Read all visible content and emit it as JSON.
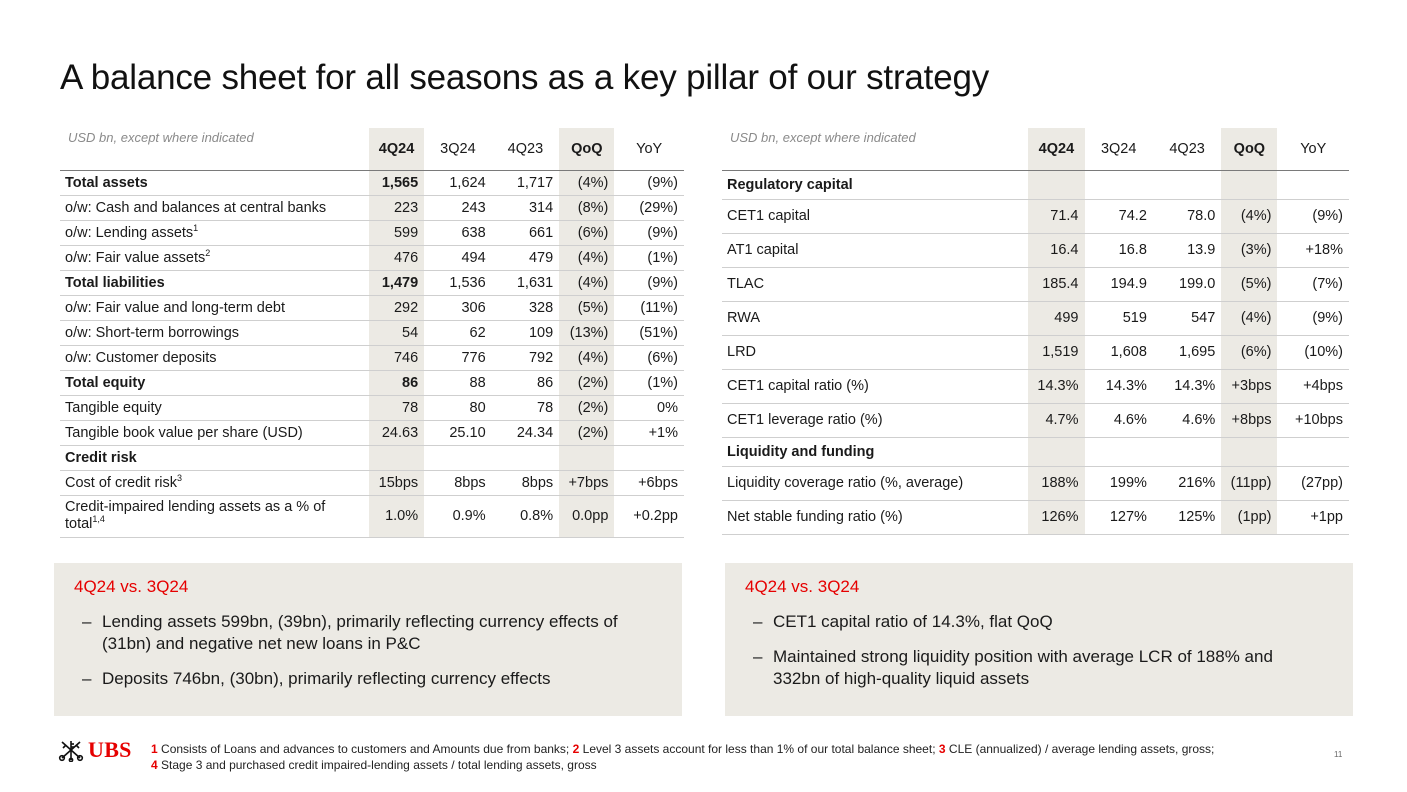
{
  "title": "A balance sheet for all seasons as a key pillar of our strategy",
  "left_table": {
    "unit": "USD bn, except where indicated",
    "columns": [
      "4Q24",
      "3Q24",
      "4Q23",
      "QoQ",
      "YoY"
    ],
    "rows": [
      {
        "label": "Total assets",
        "values": [
          "1,565",
          "1,624",
          "1,717",
          "(4%)",
          "(9%)"
        ]
      },
      {
        "label": "o/w: Cash and balances at central banks",
        "values": [
          "223",
          "243",
          "314",
          "(8%)",
          "(29%)"
        ]
      },
      {
        "label": "o/w: Lending assets",
        "sup": "1",
        "values": [
          "599",
          "638",
          "661",
          "(6%)",
          "(9%)"
        ]
      },
      {
        "label": "o/w: Fair value assets",
        "sup": "2",
        "values": [
          "476",
          "494",
          "479",
          "(4%)",
          "(1%)"
        ]
      },
      {
        "label": "Total liabilities",
        "values": [
          "1,479",
          "1,536",
          "1,631",
          "(4%)",
          "(9%)"
        ]
      },
      {
        "label": "o/w: Fair value and long-term debt",
        "values": [
          "292",
          "306",
          "328",
          "(5%)",
          "(11%)"
        ]
      },
      {
        "label": "o/w: Short-term borrowings",
        "values": [
          "54",
          "62",
          "109",
          "(13%)",
          "(51%)"
        ]
      },
      {
        "label": "o/w: Customer deposits",
        "values": [
          "746",
          "776",
          "792",
          "(4%)",
          "(6%)"
        ]
      },
      {
        "label": "Total equity",
        "values": [
          "86",
          "88",
          "86",
          "(2%)",
          "(1%)"
        ]
      },
      {
        "label": "Tangible equity",
        "values": [
          "78",
          "80",
          "78",
          "(2%)",
          "0%"
        ]
      },
      {
        "label": "Tangible book value per share (USD)",
        "values": [
          "24.63",
          "25.10",
          "24.34",
          "(2%)",
          "+1%"
        ]
      },
      {
        "label": "Credit risk"
      },
      {
        "label": "Cost of credit risk",
        "sup": "3",
        "values": [
          "15bps",
          "8bps",
          "8bps",
          "+7bps",
          "+6bps"
        ]
      },
      {
        "label": "Credit-impaired lending assets as a % of total",
        "sup": "1,4",
        "values": [
          "1.0%",
          "0.9%",
          "0.8%",
          "0.0pp",
          "+0.2pp"
        ]
      }
    ]
  },
  "right_table": {
    "unit": "USD bn, except where indicated",
    "columns": [
      "4Q24",
      "3Q24",
      "4Q23",
      "QoQ",
      "YoY"
    ],
    "rows": [
      {
        "label": "Regulatory capital"
      },
      {
        "label": "CET1 capital",
        "values": [
          "71.4",
          "74.2",
          "78.0",
          "(4%)",
          "(9%)"
        ]
      },
      {
        "label": "AT1 capital",
        "values": [
          "16.4",
          "16.8",
          "13.9",
          "(3%)",
          "+18%"
        ]
      },
      {
        "label": "TLAC",
        "values": [
          "185.4",
          "194.9",
          "199.0",
          "(5%)",
          "(7%)"
        ]
      },
      {
        "label": "RWA",
        "values": [
          "499",
          "519",
          "547",
          "(4%)",
          "(9%)"
        ]
      },
      {
        "label": "LRD",
        "values": [
          "1,519",
          "1,608",
          "1,695",
          "(6%)",
          "(10%)"
        ]
      },
      {
        "label": "CET1 capital ratio (%)",
        "values": [
          "14.3%",
          "14.3%",
          "14.3%",
          "+3bps",
          "+4bps"
        ]
      },
      {
        "label": "CET1 leverage ratio (%)",
        "values": [
          "4.7%",
          "4.6%",
          "4.6%",
          "+8bps",
          "+10bps"
        ]
      },
      {
        "label": "Liquidity and funding"
      },
      {
        "label": "Liquidity coverage ratio (%, average)",
        "values": [
          "188%",
          "199%",
          "216%",
          "(11pp)",
          "(27pp)"
        ]
      },
      {
        "label": "Net stable funding ratio (%)",
        "values": [
          "126%",
          "127%",
          "125%",
          "(1pp)",
          "+1pp"
        ]
      }
    ]
  },
  "left_box": {
    "heading": "4Q24 vs. 3Q24",
    "bullets": [
      "Lending assets 599bn, (39bn), primarily reflecting currency effects of (31bn) and negative net new loans in P&C",
      "Deposits 746bn, (30bn), primarily reflecting currency effects"
    ]
  },
  "right_box": {
    "heading": "4Q24 vs. 3Q24",
    "bullets": [
      "CET1 capital ratio of 14.3%, flat QoQ",
      "Maintained strong liquidity position with average LCR of 188% and 332bn of high-quality liquid assets"
    ]
  },
  "logo": {
    "text": "UBS",
    "icon": "keys-icon",
    "color": "#e60000"
  },
  "footnotes": [
    {
      "num": "1",
      "text": "Consists of Loans and advances to customers and Amounts due from banks;"
    },
    {
      "num": "2",
      "text": "Level 3 assets account for less than 1% of our total balance sheet;"
    },
    {
      "num": "3",
      "text": "CLE (annualized) / average lending assets, gross;"
    },
    {
      "num": "4",
      "text": "Stage 3 and purchased credit impaired-lending assets / total lending assets, gross"
    }
  ],
  "page_number": "11",
  "colors": {
    "accent": "#e60000",
    "highlight": "#eceae4",
    "box": "#eceae4"
  }
}
